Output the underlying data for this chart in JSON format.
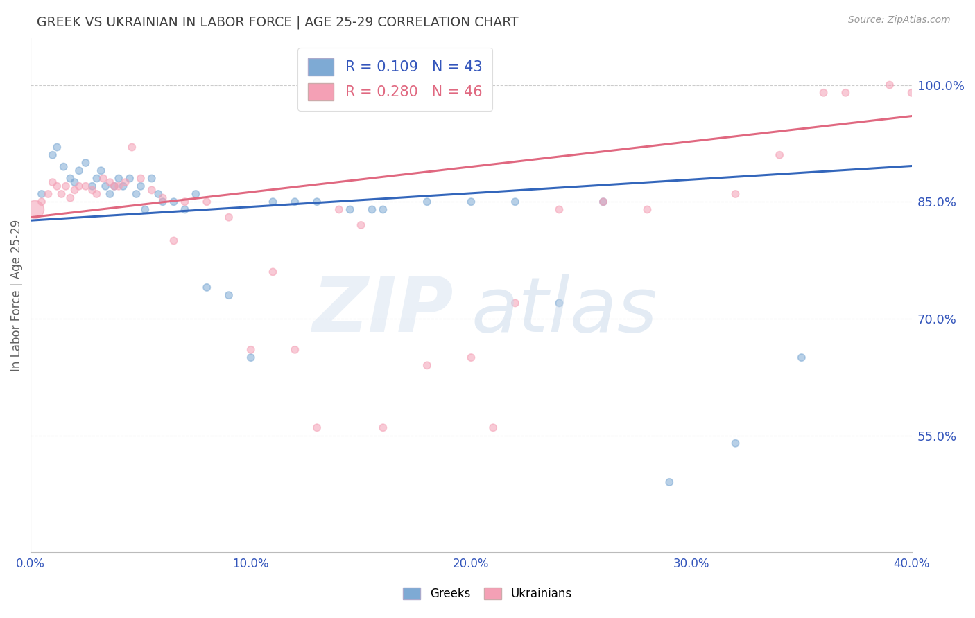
{
  "title": "GREEK VS UKRAINIAN IN LABOR FORCE | AGE 25-29 CORRELATION CHART",
  "source": "Source: ZipAtlas.com",
  "ylabel": "In Labor Force | Age 25-29",
  "xlim": [
    0.0,
    0.4
  ],
  "ylim": [
    0.4,
    1.06
  ],
  "xticks": [
    0.0,
    0.1,
    0.2,
    0.3,
    0.4
  ],
  "xticklabels": [
    "0.0%",
    "10.0%",
    "20.0%",
    "30.0%",
    "40.0%"
  ],
  "yticks_right": [
    0.55,
    0.7,
    0.85,
    1.0
  ],
  "yticklabels_right": [
    "55.0%",
    "70.0%",
    "85.0%",
    "100.0%"
  ],
  "R_greek": 0.109,
  "N_greek": 43,
  "R_ukr": 0.28,
  "N_ukr": 46,
  "blue_color": "#7eaad4",
  "pink_color": "#f4a0b5",
  "blue_line_color": "#3366bb",
  "pink_line_color": "#e06880",
  "title_color": "#404040",
  "axis_label_color": "#606060",
  "tick_color": "#3355bb",
  "greek_x": [
    0.005,
    0.01,
    0.012,
    0.015,
    0.018,
    0.02,
    0.022,
    0.025,
    0.028,
    0.03,
    0.032,
    0.034,
    0.036,
    0.038,
    0.04,
    0.042,
    0.045,
    0.048,
    0.05,
    0.052,
    0.055,
    0.058,
    0.06,
    0.065,
    0.07,
    0.075,
    0.08,
    0.09,
    0.1,
    0.11,
    0.12,
    0.13,
    0.145,
    0.155,
    0.16,
    0.18,
    0.2,
    0.22,
    0.24,
    0.26,
    0.29,
    0.32,
    0.35
  ],
  "greek_y": [
    0.86,
    0.91,
    0.92,
    0.895,
    0.88,
    0.875,
    0.89,
    0.9,
    0.87,
    0.88,
    0.89,
    0.87,
    0.86,
    0.87,
    0.88,
    0.87,
    0.88,
    0.86,
    0.87,
    0.84,
    0.88,
    0.86,
    0.85,
    0.85,
    0.84,
    0.86,
    0.74,
    0.73,
    0.65,
    0.85,
    0.85,
    0.85,
    0.84,
    0.84,
    0.84,
    0.85,
    0.85,
    0.85,
    0.72,
    0.85,
    0.49,
    0.54,
    0.65
  ],
  "greek_sizes": [
    55,
    55,
    55,
    55,
    55,
    55,
    55,
    55,
    55,
    55,
    55,
    55,
    55,
    55,
    55,
    55,
    55,
    55,
    55,
    55,
    55,
    55,
    55,
    55,
    55,
    55,
    55,
    55,
    55,
    55,
    55,
    55,
    55,
    55,
    55,
    55,
    55,
    55,
    55,
    55,
    55,
    55,
    55
  ],
  "ukr_x": [
    0.002,
    0.005,
    0.008,
    0.01,
    0.012,
    0.014,
    0.016,
    0.018,
    0.02,
    0.022,
    0.025,
    0.028,
    0.03,
    0.033,
    0.036,
    0.038,
    0.04,
    0.043,
    0.046,
    0.05,
    0.055,
    0.06,
    0.065,
    0.07,
    0.08,
    0.09,
    0.1,
    0.11,
    0.12,
    0.13,
    0.14,
    0.15,
    0.16,
    0.18,
    0.2,
    0.21,
    0.22,
    0.24,
    0.26,
    0.28,
    0.32,
    0.34,
    0.36,
    0.37,
    0.39,
    0.4
  ],
  "ukr_y": [
    0.84,
    0.85,
    0.86,
    0.875,
    0.87,
    0.86,
    0.87,
    0.855,
    0.865,
    0.87,
    0.87,
    0.865,
    0.86,
    0.88,
    0.875,
    0.87,
    0.87,
    0.875,
    0.92,
    0.88,
    0.865,
    0.855,
    0.8,
    0.85,
    0.85,
    0.83,
    0.66,
    0.76,
    0.66,
    0.56,
    0.84,
    0.82,
    0.56,
    0.64,
    0.65,
    0.56,
    0.72,
    0.84,
    0.85,
    0.84,
    0.86,
    0.91,
    0.99,
    0.99,
    1.0,
    0.99
  ],
  "ukr_sizes": [
    350,
    55,
    55,
    55,
    55,
    55,
    55,
    55,
    55,
    55,
    55,
    55,
    55,
    55,
    55,
    55,
    55,
    55,
    55,
    55,
    55,
    55,
    55,
    55,
    55,
    55,
    55,
    55,
    55,
    55,
    55,
    55,
    55,
    55,
    55,
    55,
    55,
    55,
    55,
    55,
    55,
    55,
    55,
    55,
    55,
    55
  ],
  "greek_line_x": [
    0.0,
    0.4
  ],
  "greek_line_y": [
    0.826,
    0.896
  ],
  "ukr_line_x": [
    0.0,
    0.4
  ],
  "ukr_line_y": [
    0.83,
    0.96
  ]
}
